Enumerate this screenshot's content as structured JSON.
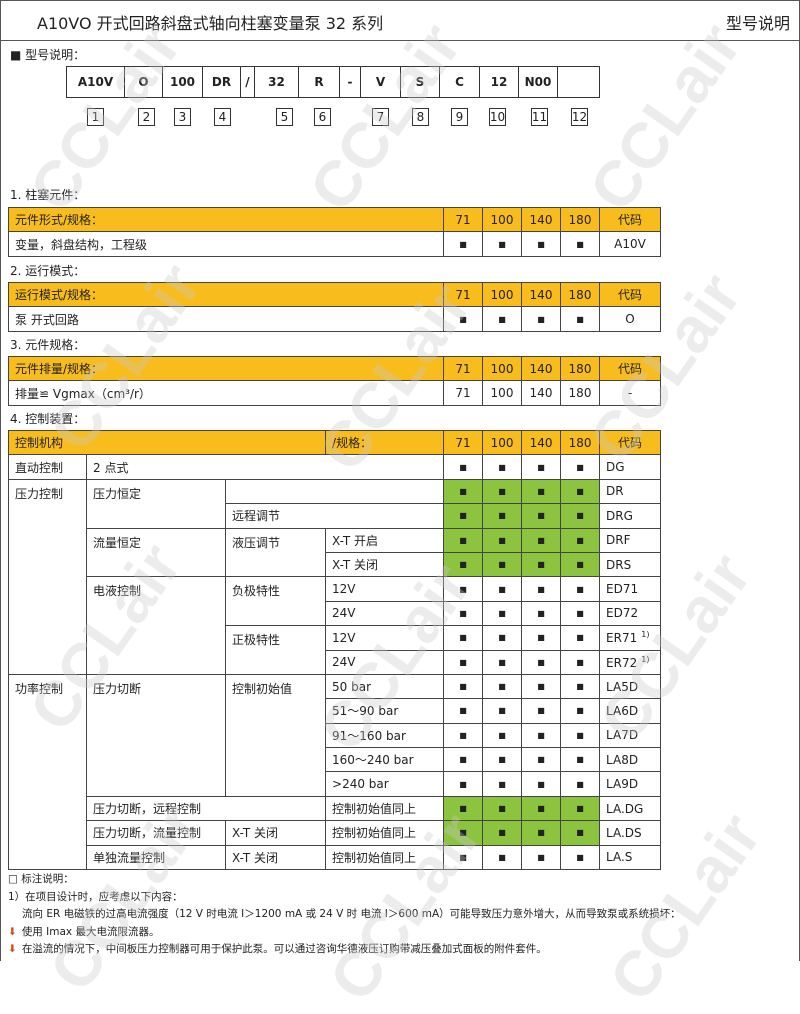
{
  "header": {
    "title": "A10VO 开式回路斜盘式轴向柱塞变量泵  32 系列",
    "right": "型号说明"
  },
  "watermark": "CCLair",
  "model": {
    "label": "■  型号说明：",
    "codes": [
      "A10V",
      "O",
      "100",
      "DR",
      "/",
      "32",
      "R",
      "-",
      "V",
      "S",
      "C",
      "12",
      "N00",
      ""
    ],
    "numbers": [
      "1",
      "2",
      "3",
      "4",
      "5",
      "6",
      "7",
      "8",
      "9",
      "10",
      "11",
      "12"
    ]
  },
  "sizes": [
    "71",
    "100",
    "140",
    "180"
  ],
  "code_header": "代码",
  "mark": "■",
  "sections": [
    {
      "label": "1.  柱塞元件：",
      "header": "元件形式/规格：",
      "rows": [
        {
          "text": "变量，斜盘结构，工程级",
          "code": "A10V"
        }
      ]
    },
    {
      "label": "2.  运行模式：",
      "header": "运行模式/规格：",
      "rows": [
        {
          "text": "泵  开式回路",
          "code": "O"
        }
      ]
    },
    {
      "label": "3.  元件规格：",
      "header": "元件排量/规格：",
      "rows": [
        {
          "text": "排量≌ Vgmax（cm³/r）",
          "values": [
            "71",
            "100",
            "140",
            "180"
          ],
          "code": "-"
        }
      ]
    }
  ],
  "control": {
    "label": "4.  控制装置：",
    "header1": "控制机构",
    "header2": "/规格：",
    "rows": {
      "dg": {
        "c1": "直动控制",
        "c2": "2 点式",
        "code": "DG"
      },
      "dr": {
        "c1": "压力控制",
        "c2": "压力恒定",
        "code": "DR"
      },
      "drg": {
        "c3": "远程调节",
        "code": "DRG"
      },
      "drf": {
        "c2": "流量恒定",
        "c3": "液压调节",
        "c4": "X-T 开启",
        "code": "DRF"
      },
      "drs": {
        "c4": "X-T 关闭",
        "code": "DRS"
      },
      "ed71": {
        "c2": "电液控制",
        "c3": "负极特性",
        "c4": "12V",
        "code": "ED71"
      },
      "ed72": {
        "c4": "24V",
        "code": "ED72"
      },
      "er71": {
        "c3": "正极特性",
        "c4": "12V",
        "code": "ER71",
        "note": "1)"
      },
      "er72": {
        "c4": "24V",
        "code": "ER72",
        "note": "1)"
      },
      "la5d": {
        "c1": "功率控制",
        "c2": "压力切断",
        "c3": "控制初始值",
        "c4": "50 bar",
        "code": "LA5D"
      },
      "la6d": {
        "c4": "51～90 bar",
        "code": "LA6D"
      },
      "la7d": {
        "c4": "91～160 bar",
        "code": "LA7D"
      },
      "la8d": {
        "c4": "160～240 bar",
        "code": "LA8D"
      },
      "la9d": {
        "c4": ">240 bar",
        "code": "LA9D"
      },
      "ladg": {
        "c2": "压力切断，远程控制",
        "c4": "控制初始值同上",
        "code": "LA.DG"
      },
      "lads": {
        "c2": "压力切断，流量控制",
        "c3": "X-T 关闭",
        "c4": "控制初始值同上",
        "code": "LA.DS"
      },
      "las": {
        "c2": "单独流量控制",
        "c3": "X-T 关闭",
        "c4": "控制初始值同上",
        "code": "LA.S"
      }
    }
  },
  "notes": {
    "title": "□  标注说明：",
    "n1": "1）在项目设计时，应考虑以下内容：",
    "n2": "流向 ER 电磁铁的过高电流强度（12 V 时电流 I＞1200 mA 或 24 V 时  电流 I＞600 mA）可能导致压力意外增大，从而导致泵或系统损坏：",
    "b1": "使用 Imax 最大电流限流器。",
    "b2": "在溢流的情况下，中间板压力控制器可用于保护此泵。可以通过咨询华德液压订购带减压叠加式面板的附件套件。"
  },
  "colors": {
    "header_yellow": "#F8BC1C",
    "highlight_green": "#8CC43F"
  }
}
